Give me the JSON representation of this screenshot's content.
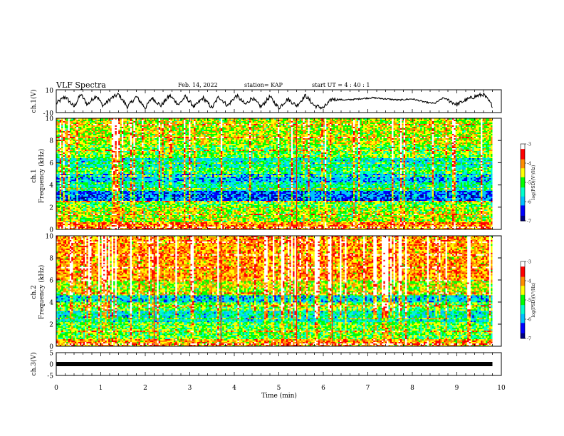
{
  "header": {
    "title": "VLF Spectra",
    "date": "Feb. 14, 2022",
    "station": "station= KAP",
    "start": "start  UT =   4 : 40 : 1"
  },
  "colors": {
    "colormap": [
      "#00008b",
      "#0000ff",
      "#00e5ff",
      "#00ff7f",
      "#00cc00",
      "#ffff00",
      "#ff8c00",
      "#ff0000",
      "#ffffff"
    ],
    "line": "#000000"
  },
  "chart_data": [
    {
      "type": "line",
      "panel": "ch1-waveform",
      "ylabel": "ch.1(V)",
      "ylim": [
        -10,
        10
      ],
      "y_ticks": [
        "10",
        "-10"
      ],
      "xlim": [
        0,
        10
      ],
      "series": [
        {
          "x": [
            0,
            0.2,
            0.4,
            0.55,
            0.7,
            0.9,
            1.05,
            1.25,
            1.4,
            1.6,
            1.8,
            2.0,
            2.15,
            2.35,
            2.55,
            2.75,
            2.9,
            3.1,
            3.3,
            3.5,
            3.65,
            3.85,
            4.05,
            4.25,
            4.4,
            4.6,
            4.8,
            5.0,
            5.2,
            5.4,
            5.6,
            5.8,
            6.0,
            6.2,
            6.5,
            6.8,
            7.1,
            7.4,
            7.7,
            8.0,
            8.3,
            8.5,
            8.7,
            9.0,
            9.2,
            9.4,
            9.6,
            9.8
          ],
          "values": [
            -2,
            4,
            -5,
            6,
            -3,
            5,
            -4,
            3,
            6,
            -5,
            4,
            -6,
            3,
            -4,
            5,
            -3,
            4,
            -5,
            3,
            -6,
            4,
            -4,
            5,
            -3,
            3,
            -5,
            4,
            -6,
            2,
            -4,
            5,
            -4,
            -6,
            2,
            1,
            2,
            3,
            2,
            1,
            2,
            -1,
            -2,
            3,
            -3,
            1,
            4,
            6,
            -4
          ]
        }
      ]
    },
    {
      "type": "heatmap",
      "panel": "ch1-spectrogram",
      "ylabel": "ch.1\nFrequency (kHz)",
      "xlim": [
        0,
        10
      ],
      "ylim": [
        0,
        10
      ],
      "y_ticks": [
        0,
        2,
        4,
        6,
        8,
        10
      ],
      "colorbar": {
        "label": "log(PSD)(V²/Hz)",
        "range": [
          -7,
          -3
        ],
        "ticks": [
          -3,
          -4,
          -5,
          -6,
          -7
        ]
      },
      "bands_khz": [
        {
          "from": 0.0,
          "to": 0.7,
          "level": -4.0
        },
        {
          "from": 0.7,
          "to": 2.0,
          "level": -4.7
        },
        {
          "from": 2.0,
          "to": 2.6,
          "level": -5.0
        },
        {
          "from": 2.6,
          "to": 3.4,
          "level": -6.3
        },
        {
          "from": 3.4,
          "to": 4.2,
          "level": -5.4
        },
        {
          "from": 4.2,
          "to": 5.0,
          "level": -5.9
        },
        {
          "from": 5.0,
          "to": 5.6,
          "level": -5.2
        },
        {
          "from": 5.6,
          "to": 6.4,
          "level": -5.6
        },
        {
          "from": 6.4,
          "to": 7.6,
          "level": -4.9
        },
        {
          "from": 7.6,
          "to": 10.0,
          "level": -4.6
        }
      ]
    },
    {
      "type": "heatmap",
      "panel": "ch2-spectrogram",
      "ylabel": "ch.2\nFrequency (kHz)",
      "xlim": [
        0,
        10
      ],
      "ylim": [
        0,
        10
      ],
      "y_ticks": [
        0,
        2,
        4,
        6,
        8,
        10
      ],
      "colorbar": {
        "label": "log(PSD)(V²/Hz)",
        "range": [
          -7,
          -3
        ],
        "ticks": [
          -3,
          -4,
          -5,
          -6,
          -7
        ]
      },
      "bands_khz": [
        {
          "from": 0.0,
          "to": 0.7,
          "level": -4.2
        },
        {
          "from": 0.7,
          "to": 2.2,
          "level": -5.0
        },
        {
          "from": 2.2,
          "to": 3.2,
          "level": -5.6
        },
        {
          "from": 3.2,
          "to": 4.0,
          "level": -4.9
        },
        {
          "from": 4.0,
          "to": 4.6,
          "level": -5.8
        },
        {
          "from": 4.6,
          "to": 6.0,
          "level": -4.6
        },
        {
          "from": 6.0,
          "to": 10.0,
          "level": -4.1
        }
      ]
    },
    {
      "type": "line",
      "panel": "ch3-signal",
      "ylabel": "ch.3(V)",
      "xlabel": "Time  (min)",
      "ylim": [
        -5,
        5
      ],
      "y_ticks": [
        "5",
        "0",
        "-5"
      ],
      "xlim": [
        0,
        10
      ],
      "x_ticks": [
        0,
        1,
        2,
        3,
        4,
        5,
        6,
        7,
        8,
        9,
        10
      ],
      "series": [
        {
          "x": [
            0,
            9.8
          ],
          "values": [
            0,
            0
          ]
        }
      ]
    }
  ]
}
